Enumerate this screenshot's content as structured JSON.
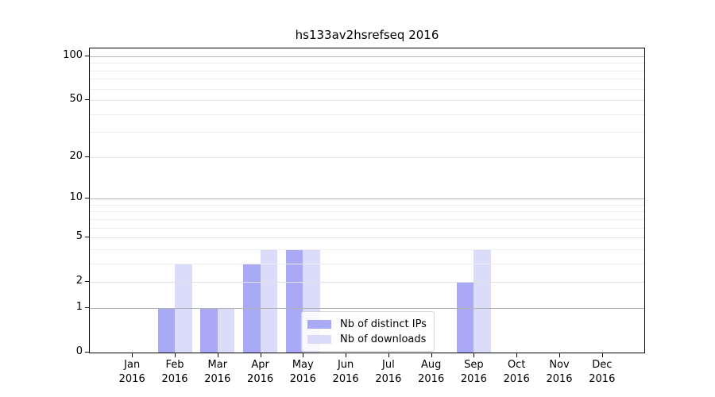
{
  "title": "hs133av2hsrefseq 2016",
  "chart_data": {
    "type": "bar",
    "title": "hs133av2hsrefseq 2016",
    "xlabel": "",
    "ylabel": "",
    "categories": [
      "Jan 2016",
      "Feb 2016",
      "Mar 2016",
      "Apr 2016",
      "May 2016",
      "Jun 2016",
      "Jul 2016",
      "Aug 2016",
      "Sep 2016",
      "Oct 2016",
      "Nov 2016",
      "Dec 2016"
    ],
    "month_labels": [
      "Jan",
      "Feb",
      "Mar",
      "Apr",
      "May",
      "Jun",
      "Jul",
      "Aug",
      "Sep",
      "Oct",
      "Nov",
      "Dec"
    ],
    "year_label": "2016",
    "series": [
      {
        "name": "Nb of distinct IPs",
        "color": "#a9a9f6",
        "values": [
          0,
          1,
          1,
          3,
          4,
          0,
          0,
          0,
          2,
          0,
          0,
          0
        ]
      },
      {
        "name": "Nb of downloads",
        "color": "#dbdbfa",
        "values": [
          0,
          3,
          1,
          4,
          4,
          0,
          0,
          0,
          4,
          0,
          0,
          0
        ]
      }
    ],
    "yscale": "log1p",
    "ylim": [
      0,
      113
    ],
    "yticks_major": [
      0,
      1,
      2,
      5,
      10,
      20,
      50,
      100
    ],
    "yticks_minor": [
      3,
      4,
      6,
      7,
      8,
      9,
      30,
      40,
      60,
      70,
      80,
      90
    ],
    "power_gridlines": [
      1,
      10,
      100
    ],
    "xlim": [
      -0.99,
      11.99
    ],
    "bar_width_units": 0.4,
    "grid": true,
    "legend_position": "inside-lower-center"
  },
  "legend": {
    "items": [
      {
        "label": "Nb of distinct IPs",
        "series_index": 0
      },
      {
        "label": "Nb of downloads",
        "series_index": 1
      }
    ]
  },
  "colors": {
    "background": "#ffffff",
    "spine": "#000000",
    "grid_power": "#b4b4b4",
    "grid_labeled": "#e2e2e2",
    "grid_minor": "#ededed",
    "legend_border": "#d4d4d4",
    "text": "#000000"
  }
}
